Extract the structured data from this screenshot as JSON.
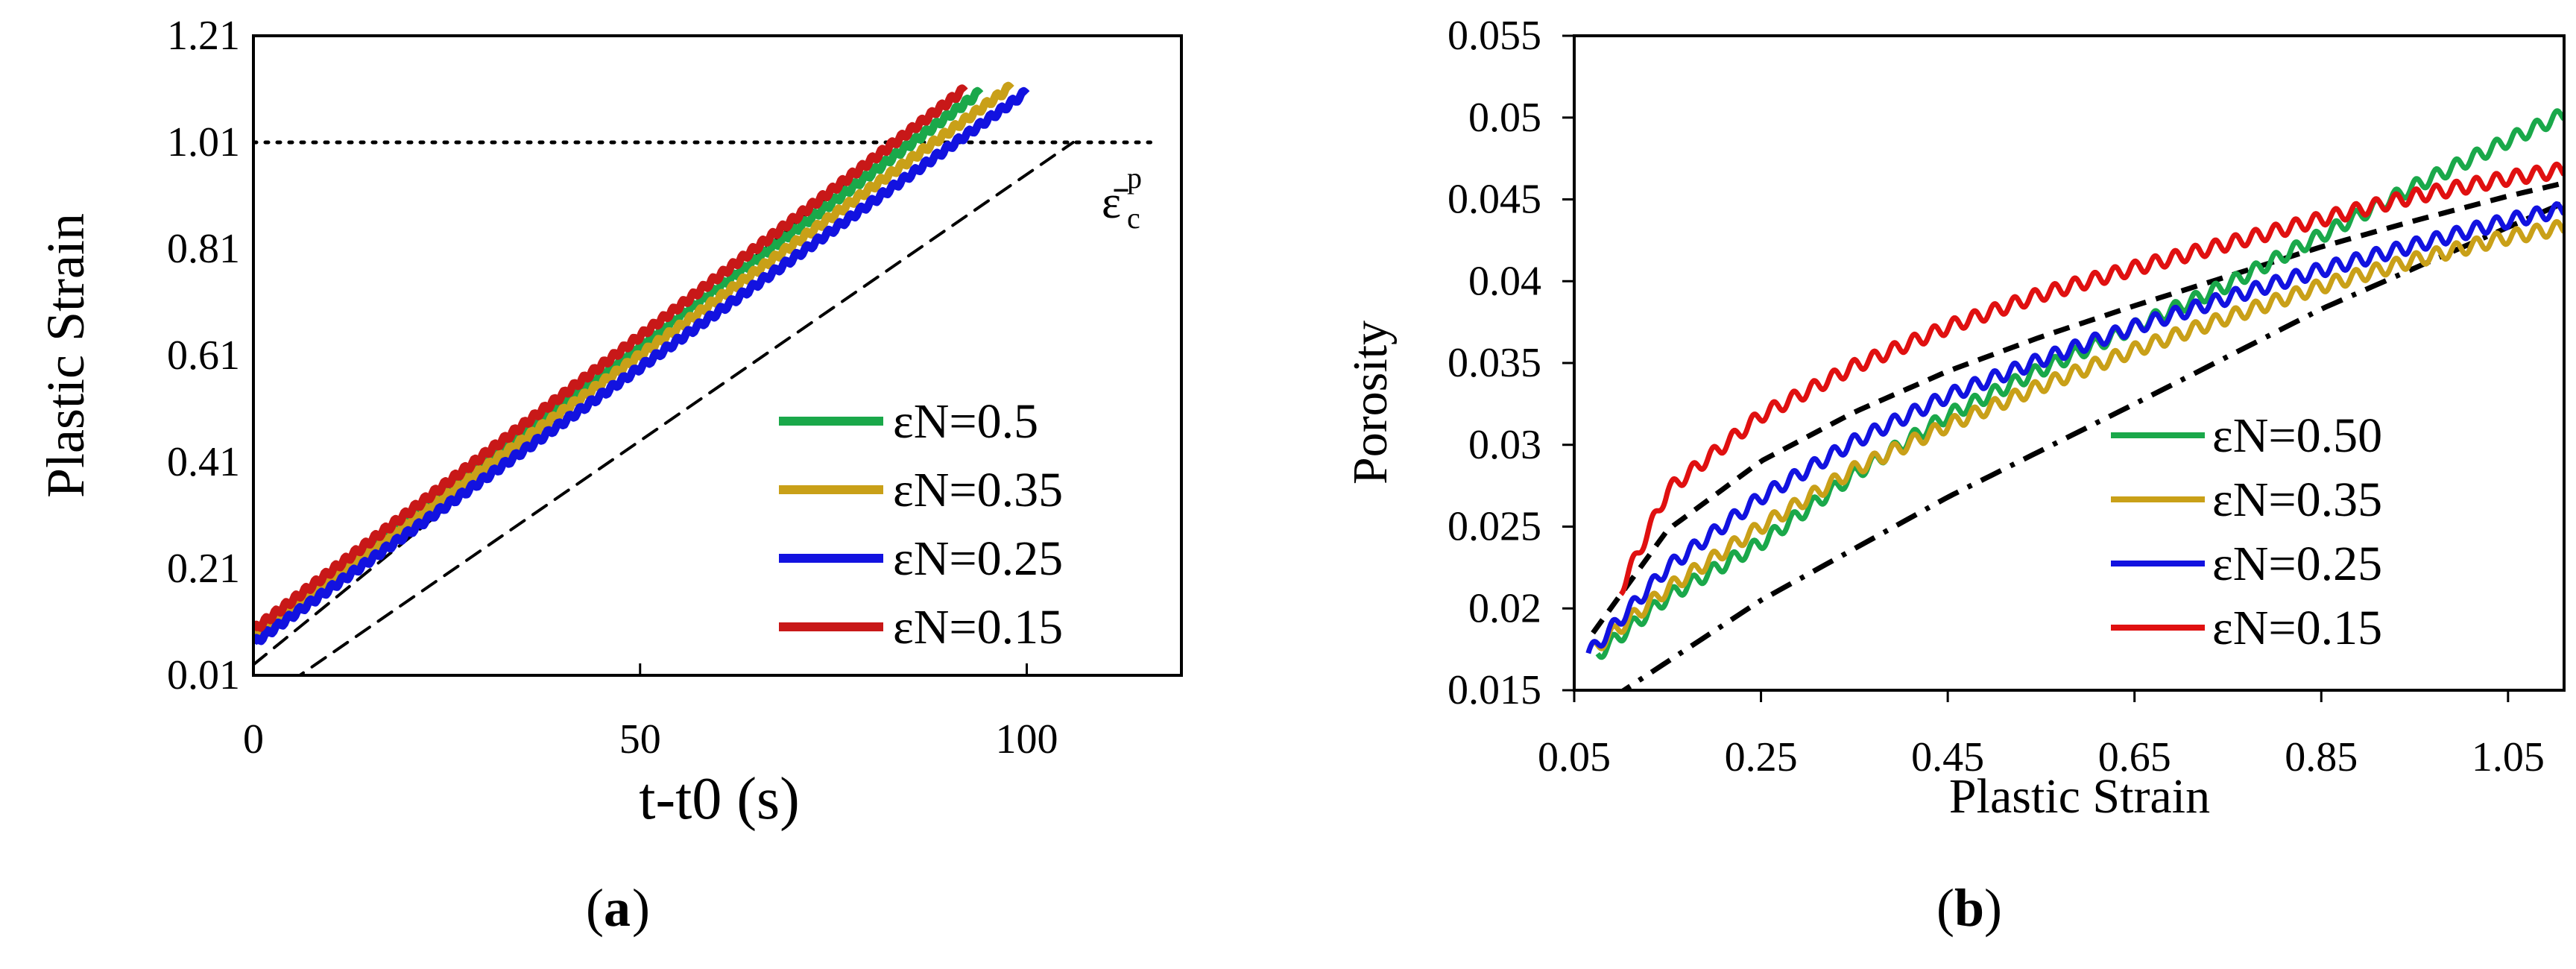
{
  "colors": {
    "green": "#1aa84a",
    "gold": "#c9a018",
    "blue": "#1212e0",
    "red": "#e01010",
    "darkred": "#c81818",
    "black": "#000000"
  },
  "chart_data": [
    {
      "type": "line",
      "panel": "a",
      "caption_label": "a",
      "xlabel": "t-t0 (s)",
      "ylabel": "Plastic Strain",
      "xlim": [
        0,
        120
      ],
      "ylim": [
        0.01,
        1.21
      ],
      "xticks": [
        "0",
        "50",
        "100"
      ],
      "xtick_values": [
        0,
        50,
        100
      ],
      "yticks": [
        "0.01",
        "0.21",
        "0.41",
        "0.61",
        "0.81",
        "1.01",
        "1.21"
      ],
      "ytick_values": [
        0.01,
        0.21,
        0.41,
        0.61,
        0.81,
        1.01,
        1.21
      ],
      "annotation": "ε̄cp",
      "annotation_base": "ε̄",
      "annotation_sup": "p",
      "annotation_sub": "c",
      "legend_position": "bottom-right",
      "series": [
        {
          "name": "εN=0.5",
          "color": "#1aa84a",
          "x": [
            0,
            94
          ],
          "y": [
            0.085,
            1.105
          ]
        },
        {
          "name": "εN=0.35",
          "color": "#c9a018",
          "x": [
            0,
            98
          ],
          "y": [
            0.085,
            1.115
          ]
        },
        {
          "name": "εN=0.25",
          "color": "#1212e0",
          "x": [
            0,
            100
          ],
          "y": [
            0.07,
            1.105
          ]
        },
        {
          "name": "εN=0.15",
          "color": "#c81818",
          "x": [
            0,
            92
          ],
          "y": [
            0.095,
            1.11
          ]
        }
      ],
      "reference_lines": [
        {
          "name": "critical plastic strain",
          "style": "dotted",
          "x": [
            0,
            116
          ],
          "y": [
            1.01,
            1.01
          ]
        },
        {
          "name": "upper dashed",
          "style": "dashed",
          "x": [
            0,
            83
          ],
          "y": [
            0.03,
            1.01
          ]
        },
        {
          "name": "lower dashed",
          "style": "dashed",
          "x": [
            -1,
            106
          ],
          "y": [
            -0.06,
            1.01
          ]
        }
      ]
    },
    {
      "type": "line",
      "panel": "b",
      "caption_label": "b",
      "xlabel": "Plastic Strain",
      "ylabel": "Porosity",
      "xlim": [
        0.05,
        1.11
      ],
      "ylim": [
        0.015,
        0.055
      ],
      "xticks": [
        "0.05",
        "0.25",
        "0.45",
        "0.65",
        "0.85",
        "1.05"
      ],
      "xtick_values": [
        0.05,
        0.25,
        0.45,
        0.65,
        0.85,
        1.05
      ],
      "yticks": [
        "0.015",
        "0.02",
        "0.025",
        "0.03",
        "0.035",
        "0.04",
        "0.045",
        "0.05",
        "0.055"
      ],
      "ytick_values": [
        0.015,
        0.02,
        0.025,
        0.03,
        0.035,
        0.04,
        0.045,
        0.05,
        0.055
      ],
      "legend_position": "center-right",
      "series": [
        {
          "name": "εN=0.50",
          "color": "#1aa84a",
          "x": [
            0.075,
            0.15,
            0.25,
            0.35,
            0.45,
            0.55,
            0.65,
            0.75,
            0.85,
            0.95,
            1.05,
            1.11
          ],
          "y": [
            0.0172,
            0.0207,
            0.024,
            0.0282,
            0.0318,
            0.0346,
            0.0372,
            0.0398,
            0.0428,
            0.0458,
            0.0486,
            0.0502
          ]
        },
        {
          "name": "εN=0.35",
          "color": "#c9a018",
          "x": [
            0.07,
            0.15,
            0.25,
            0.35,
            0.45,
            0.55,
            0.65,
            0.75,
            0.85,
            0.95,
            1.05,
            1.11
          ],
          "y": [
            0.0175,
            0.0212,
            0.025,
            0.0285,
            0.0312,
            0.0336,
            0.0358,
            0.0378,
            0.0397,
            0.0413,
            0.0427,
            0.0433
          ]
        },
        {
          "name": "εN=0.25",
          "color": "#1212e0",
          "x": [
            0.065,
            0.15,
            0.25,
            0.35,
            0.45,
            0.55,
            0.65,
            0.75,
            0.85,
            0.95,
            1.05,
            1.11
          ],
          "y": [
            0.0172,
            0.0225,
            0.0268,
            0.0302,
            0.033,
            0.0352,
            0.0372,
            0.039,
            0.0407,
            0.0422,
            0.0437,
            0.0444
          ]
        },
        {
          "name": "εN=0.15",
          "color": "#e01010",
          "x": [
            0.1,
            0.15,
            0.25,
            0.35,
            0.45,
            0.55,
            0.65,
            0.75,
            0.85,
            0.95,
            1.05,
            1.11
          ],
          "y": [
            0.0212,
            0.0272,
            0.0318,
            0.0348,
            0.0372,
            0.0392,
            0.0408,
            0.0423,
            0.0438,
            0.0452,
            0.0463,
            0.0468
          ]
        }
      ],
      "reference_lines": [
        {
          "name": "dashed fit",
          "style": "dashed",
          "x": [
            0.07,
            0.15,
            0.25,
            0.35,
            0.45,
            0.55,
            0.65,
            0.75,
            0.85,
            0.95,
            1.05,
            1.11
          ],
          "y": [
            0.0185,
            0.0248,
            0.029,
            0.032,
            0.0345,
            0.0366,
            0.0385,
            0.0403,
            0.0421,
            0.0437,
            0.0452,
            0.046
          ]
        },
        {
          "name": "dash-dot fit",
          "style": "dashdot",
          "x": [
            0.09,
            0.25,
            0.45,
            0.65,
            0.85,
            1.05,
            1.11
          ],
          "y": [
            0.0145,
            0.0205,
            0.0268,
            0.0325,
            0.0383,
            0.0433,
            0.0448
          ]
        }
      ]
    }
  ]
}
